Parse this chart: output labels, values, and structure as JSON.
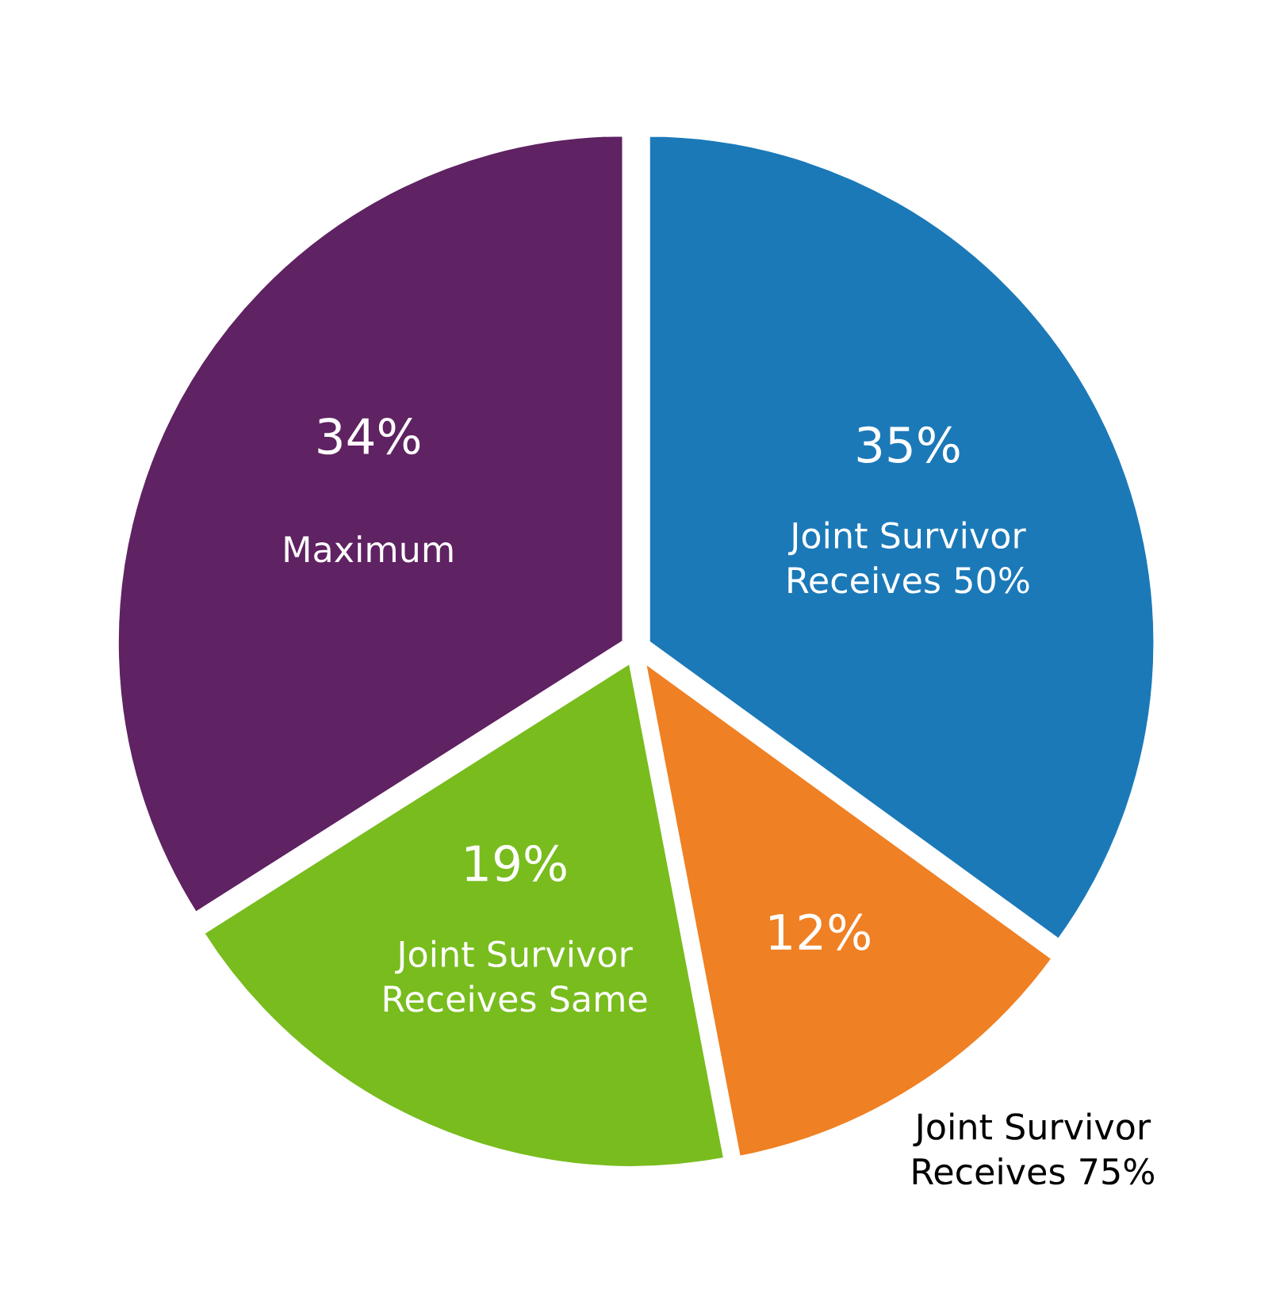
{
  "chart_data": {
    "type": "pie",
    "categories": [
      "Joint Survivor\nReceives 50%",
      "Joint Survivor\nReceives 75%",
      "Joint Survivor\nReceives Same",
      "Maximum"
    ],
    "values": [
      35,
      12,
      19,
      34
    ],
    "colors": [
      "#1b79b8",
      "#ef8023",
      "#78bc1e",
      "#5f2262"
    ],
    "value_labels": [
      "35%",
      "12%",
      "19%",
      "34%"
    ]
  }
}
